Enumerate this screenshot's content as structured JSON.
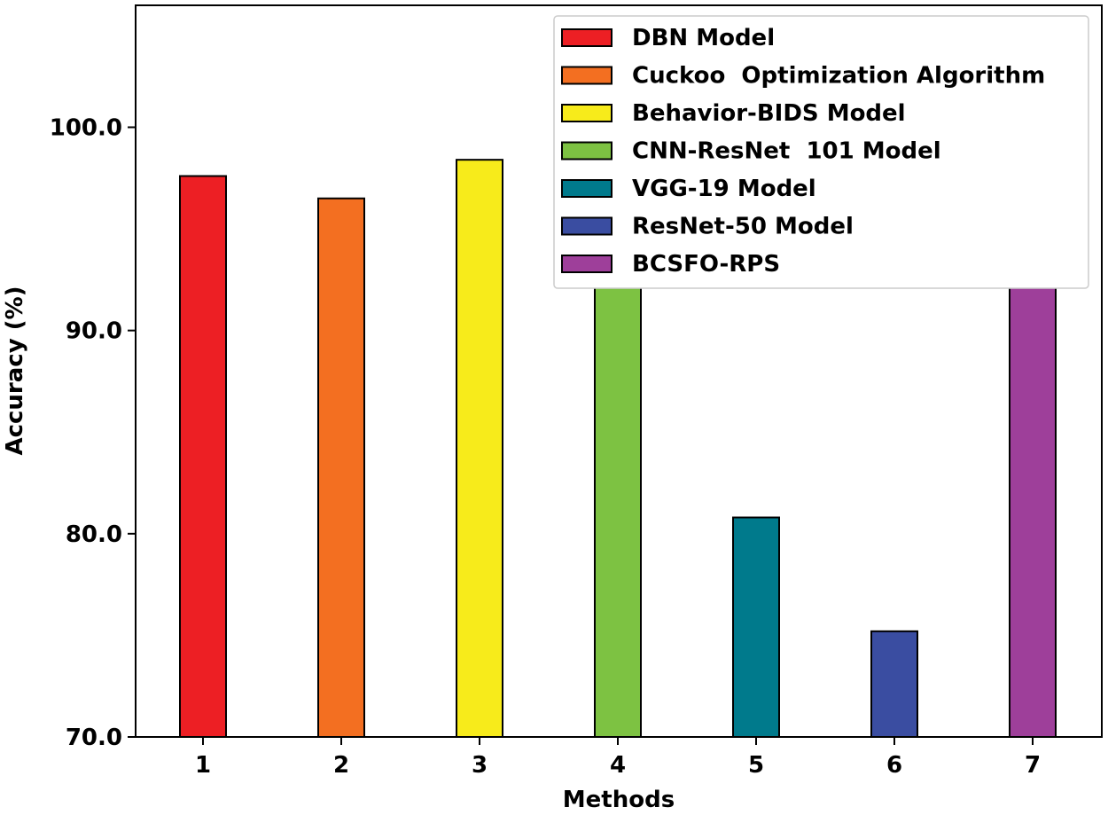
{
  "chart_data": {
    "type": "bar",
    "title": "",
    "xlabel": "Methods",
    "ylabel": "Accuracy (%)",
    "categories": [
      "1",
      "2",
      "3",
      "4",
      "5",
      "6",
      "7"
    ],
    "ylim": [
      70,
      106
    ],
    "yticks": [
      70,
      80,
      90,
      100
    ],
    "ytick_labels": [
      "70.0",
      "80.0",
      "90.0",
      "100.0"
    ],
    "grid": false,
    "legend_position": "top-right",
    "series": [
      {
        "name": "DBN Model",
        "category": "1",
        "value": 97.6,
        "color": "#ed1f24"
      },
      {
        "name": "Cuckoo  Optimization Algorithm",
        "category": "2",
        "value": 96.5,
        "color": "#f36f21"
      },
      {
        "name": "Behavior-BIDS Model",
        "category": "3",
        "value": 98.4,
        "color": "#f7eb1b"
      },
      {
        "name": "CNN-ResNet  101 Model",
        "category": "4",
        "value": 94.3,
        "color": "#7dc242"
      },
      {
        "name": "VGG-19 Model",
        "category": "5",
        "value": 80.8,
        "color": "#007a8c"
      },
      {
        "name": "ResNet-50 Model",
        "category": "6",
        "value": 75.2,
        "color": "#3a4da1"
      },
      {
        "name": "BCSFO-RPS",
        "category": "7",
        "value": 98.6,
        "color": "#9e3f9a"
      }
    ]
  }
}
